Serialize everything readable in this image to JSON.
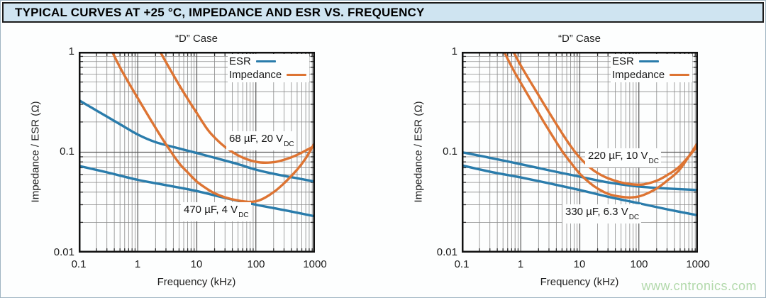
{
  "page": {
    "title": "TYPICAL CURVES AT +25 °C, IMPEDANCE AND ESR VS. FREQUENCY",
    "watermark": "www.cntronics.com"
  },
  "colors": {
    "esr_line": "#2a7cab",
    "impedance_line": "#dd7433",
    "title_bar_bg": "#cfe4f1",
    "watermark_green": "#b2d9ab",
    "grid_major": "#565656",
    "grid_minor": "#8a8a8a",
    "tick_stub": "#2b2b2b",
    "plot_frame": "#111111",
    "page_border": "#9fb4c2"
  },
  "chart_data": [
    {
      "type": "line",
      "title": "“D” Case",
      "xlabel": "Frequency (kHz)",
      "ylabel": "Impedance / ESR (Ω)",
      "x_scale": "log",
      "y_scale": "log",
      "xlim": [
        0.1,
        1000
      ],
      "ylim": [
        0.01,
        1
      ],
      "x_tick_labels": [
        "0.1",
        "1",
        "10",
        "100",
        "1000"
      ],
      "y_tick_labels": [
        "1",
        "0.1",
        "0.01"
      ],
      "grid": "log major + minor, gray",
      "legend_position": "top-right inside plot",
      "legend": [
        {
          "label": "ESR",
          "role": "esr"
        },
        {
          "label": "Impedance",
          "role": "impedance"
        }
      ],
      "series": [
        {
          "name": "ESR — 68 µF, 20 VDC",
          "role": "esr",
          "points": [
            [
              0.1,
              0.33
            ],
            [
              0.2,
              0.26
            ],
            [
              0.5,
              0.19
            ],
            [
              1,
              0.15
            ],
            [
              2,
              0.126
            ],
            [
              5,
              0.109
            ],
            [
              10,
              0.098
            ],
            [
              20,
              0.088
            ],
            [
              50,
              0.076
            ],
            [
              100,
              0.067
            ],
            [
              200,
              0.061
            ],
            [
              500,
              0.055
            ],
            [
              1000,
              0.051
            ]
          ]
        },
        {
          "name": "ESR — 470 µF, 4 VDC",
          "role": "esr",
          "points": [
            [
              0.1,
              0.073
            ],
            [
              0.3,
              0.063
            ],
            [
              1,
              0.053
            ],
            [
              3,
              0.047
            ],
            [
              10,
              0.041
            ],
            [
              30,
              0.035
            ],
            [
              100,
              0.03
            ],
            [
              300,
              0.0265
            ],
            [
              1000,
              0.023
            ]
          ]
        },
        {
          "name": "Impedance — 470 µF, 4 VDC",
          "role": "impedance",
          "points": [
            [
              0.3,
              1.3
            ],
            [
              0.5,
              0.7
            ],
            [
              1,
              0.345
            ],
            [
              2,
              0.175
            ],
            [
              3,
              0.12
            ],
            [
              5,
              0.078
            ],
            [
              7,
              0.063
            ],
            [
              10,
              0.051
            ],
            [
              15,
              0.043
            ],
            [
              20,
              0.039
            ],
            [
              30,
              0.0355
            ],
            [
              50,
              0.033
            ],
            [
              80,
              0.032
            ],
            [
              120,
              0.0335
            ],
            [
              200,
              0.04
            ],
            [
              300,
              0.049
            ],
            [
              500,
              0.067
            ],
            [
              700,
              0.087
            ],
            [
              1000,
              0.125
            ]
          ]
        },
        {
          "name": "Impedance — 68 µF, 20 VDC",
          "role": "impedance",
          "points": [
            [
              1.8,
              1.35
            ],
            [
              3,
              0.79
            ],
            [
              5,
              0.47
            ],
            [
              7,
              0.34
            ],
            [
              10,
              0.245
            ],
            [
              15,
              0.17
            ],
            [
              20,
              0.14
            ],
            [
              30,
              0.113
            ],
            [
              50,
              0.093
            ],
            [
              80,
              0.083
            ],
            [
              120,
              0.079
            ],
            [
              200,
              0.0795
            ],
            [
              300,
              0.084
            ],
            [
              500,
              0.094
            ],
            [
              1000,
              0.116
            ]
          ]
        }
      ],
      "annotations": [
        {
          "text": "68 µF, 20 V",
          "sub": "DC"
        },
        {
          "text": "470 µF, 4 V",
          "sub": "DC"
        }
      ]
    },
    {
      "type": "line",
      "title": "“D” Case",
      "xlabel": "Frequency (kHz)",
      "ylabel": "Impedance / ESR (Ω)",
      "x_scale": "log",
      "y_scale": "log",
      "xlim": [
        0.1,
        1000
      ],
      "ylim": [
        0.01,
        1
      ],
      "x_tick_labels": [
        "0.1",
        "1",
        "10",
        "100",
        "1000"
      ],
      "y_tick_labels": [
        "1",
        "0.1",
        "0.01"
      ],
      "grid": "log major + minor, gray",
      "legend_position": "top-right inside plot",
      "legend": [
        {
          "label": "ESR",
          "role": "esr"
        },
        {
          "label": "Impedance",
          "role": "impedance"
        }
      ],
      "series": [
        {
          "name": "ESR — 220 µF, 10 VDC",
          "role": "esr",
          "points": [
            [
              0.1,
              0.1
            ],
            [
              0.3,
              0.088
            ],
            [
              1,
              0.076
            ],
            [
              3,
              0.066
            ],
            [
              10,
              0.057
            ],
            [
              30,
              0.05
            ],
            [
              100,
              0.0455
            ],
            [
              300,
              0.0435
            ],
            [
              1000,
              0.042
            ]
          ]
        },
        {
          "name": "ESR — 330 µF, 6.3 VDC",
          "role": "esr",
          "points": [
            [
              0.1,
              0.074
            ],
            [
              0.3,
              0.064
            ],
            [
              1,
              0.056
            ],
            [
              3,
              0.049
            ],
            [
              10,
              0.042
            ],
            [
              30,
              0.036
            ],
            [
              100,
              0.031
            ],
            [
              300,
              0.027
            ],
            [
              1000,
              0.0235
            ]
          ]
        },
        {
          "name": "Impedance — 330 µF, 6.3 VDC",
          "role": "impedance",
          "points": [
            [
              0.42,
              1.3
            ],
            [
              0.7,
              0.71
            ],
            [
              1,
              0.49
            ],
            [
              2,
              0.245
            ],
            [
              3,
              0.165
            ],
            [
              5,
              0.103
            ],
            [
              7,
              0.079
            ],
            [
              10,
              0.061
            ],
            [
              15,
              0.049
            ],
            [
              20,
              0.0435
            ],
            [
              30,
              0.0385
            ],
            [
              50,
              0.036
            ],
            [
              80,
              0.0355
            ],
            [
              120,
              0.0375
            ],
            [
              200,
              0.0435
            ],
            [
              300,
              0.052
            ],
            [
              500,
              0.068
            ],
            [
              1000,
              0.125
            ]
          ]
        },
        {
          "name": "Impedance — 220 µF, 10 VDC",
          "role": "impedance",
          "points": [
            [
              0.6,
              1.3
            ],
            [
              1,
              0.73
            ],
            [
              2,
              0.37
            ],
            [
              3,
              0.25
            ],
            [
              5,
              0.155
            ],
            [
              7,
              0.115
            ],
            [
              10,
              0.088
            ],
            [
              15,
              0.07
            ],
            [
              20,
              0.062
            ],
            [
              30,
              0.055
            ],
            [
              50,
              0.05
            ],
            [
              80,
              0.0478
            ],
            [
              120,
              0.0478
            ],
            [
              200,
              0.052
            ],
            [
              300,
              0.059
            ],
            [
              500,
              0.073
            ],
            [
              1000,
              0.116
            ]
          ]
        }
      ],
      "annotations": [
        {
          "text": "220 µF, 10 V",
          "sub": "DC"
        },
        {
          "text": "330 µF, 6.3 V",
          "sub": "DC"
        }
      ]
    }
  ]
}
